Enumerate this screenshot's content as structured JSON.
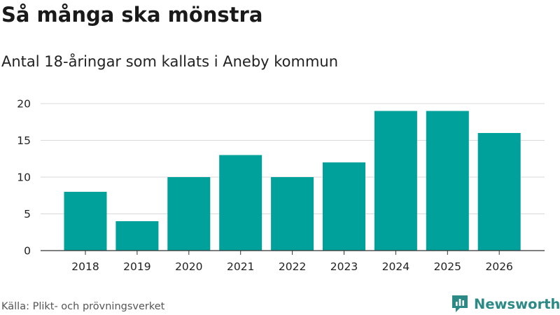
{
  "title": "Så många ska mönstra",
  "subtitle": "Antal 18-åringar som kallats i Aneby kommun",
  "source": "Källa: Plikt- och prövningsverket",
  "brand": {
    "name": "Newsworthy",
    "icon": "newsworthy-logo-icon",
    "color": "#2b8a86"
  },
  "colors": {
    "bar": "#00a19a",
    "grid": "#d9d9d9",
    "axis": "#333333"
  },
  "chart_data": {
    "type": "bar",
    "categories": [
      "2018",
      "2019",
      "2020",
      "2021",
      "2022",
      "2023",
      "2024",
      "2025",
      "2026"
    ],
    "values": [
      8,
      4,
      10,
      13,
      10,
      12,
      19,
      19,
      16
    ],
    "ylim": [
      0,
      20
    ],
    "yticks": [
      "0",
      "5",
      "10",
      "15",
      "20"
    ],
    "title": "Så många ska mönstra",
    "xlabel": "",
    "ylabel": "",
    "grid": true,
    "legend": "none"
  }
}
